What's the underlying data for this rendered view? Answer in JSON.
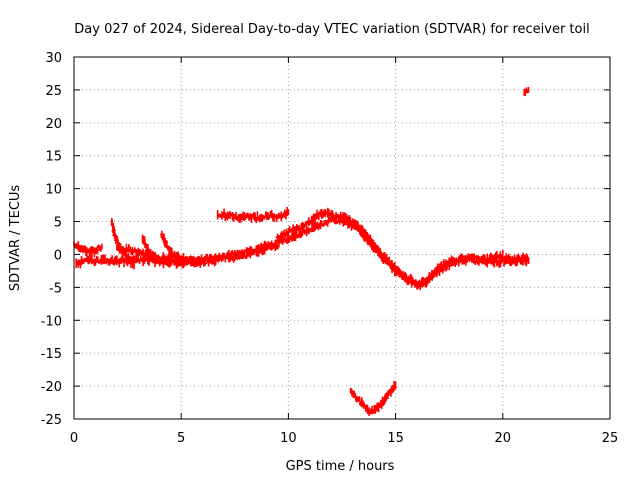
{
  "chart_data": {
    "type": "scatter",
    "title": "Day 027 of 2024, Sidereal Day-to-day VTEC variation (SDTVAR) for receiver toil",
    "xlabel": "GPS time / hours",
    "ylabel": "SDTVAR / TECUs",
    "xlim": [
      0,
      25
    ],
    "ylim": [
      -25,
      30
    ],
    "xticks": [
      0,
      5,
      10,
      15,
      20,
      25
    ],
    "yticks": [
      -25,
      -20,
      -15,
      -10,
      -5,
      0,
      5,
      10,
      15,
      20,
      25,
      30
    ],
    "grid": true,
    "series_color": "#ff0000",
    "tracks": [
      [
        [
          0.0,
          1.5
        ],
        [
          0.3,
          1.0
        ],
        [
          0.6,
          0.5
        ],
        [
          0.9,
          0.5
        ],
        [
          1.3,
          1.2
        ]
      ],
      [
        [
          0.1,
          -1.5
        ],
        [
          0.5,
          -0.9
        ],
        [
          1.0,
          -1.0
        ],
        [
          1.5,
          -1.0
        ],
        [
          2.0,
          -1.1
        ],
        [
          2.5,
          -0.9
        ],
        [
          3.0,
          -0.8
        ],
        [
          3.5,
          -0.9
        ],
        [
          4.0,
          -1.1
        ],
        [
          4.5,
          -1.2
        ],
        [
          5.0,
          -1.3
        ],
        [
          5.5,
          -1.2
        ],
        [
          6.0,
          -1.2
        ],
        [
          6.5,
          -0.9
        ],
        [
          7.0,
          -0.6
        ],
        [
          7.5,
          -0.4
        ],
        [
          8.0,
          -0.1
        ],
        [
          8.5,
          0.4
        ],
        [
          9.0,
          0.9
        ],
        [
          9.5,
          1.2
        ]
      ],
      [
        [
          1.75,
          5.0
        ],
        [
          1.9,
          3.0
        ],
        [
          2.1,
          1.0
        ],
        [
          2.4,
          0.0
        ],
        [
          2.6,
          -0.8
        ],
        [
          2.8,
          -1.8
        ]
      ],
      [
        [
          2.0,
          1.0
        ],
        [
          2.5,
          0.8
        ],
        [
          3.0,
          0.4
        ],
        [
          3.5,
          -0.2
        ],
        [
          4.0,
          -0.5
        ],
        [
          4.5,
          -0.6
        ],
        [
          5.0,
          -0.8
        ],
        [
          5.5,
          -0.9
        ],
        [
          6.0,
          -0.8
        ],
        [
          6.5,
          -0.6
        ],
        [
          7.0,
          -0.3
        ],
        [
          7.5,
          0.1
        ],
        [
          8.0,
          0.3
        ],
        [
          8.5,
          0.8
        ],
        [
          9.0,
          1.4
        ],
        [
          9.5,
          1.9
        ],
        [
          10.0,
          2.3
        ],
        [
          10.5,
          2.9
        ],
        [
          11.0,
          3.8
        ],
        [
          11.5,
          4.6
        ],
        [
          12.0,
          5.2
        ],
        [
          12.5,
          5.0
        ],
        [
          13.0,
          4.6
        ],
        [
          13.5,
          3.0
        ],
        [
          14.0,
          1.0
        ],
        [
          14.5,
          -1.0
        ],
        [
          15.0,
          -2.5
        ],
        [
          15.5,
          -3.5
        ],
        [
          16.0,
          -4.5
        ],
        [
          16.5,
          -4.0
        ],
        [
          17.0,
          -2.5
        ],
        [
          17.5,
          -1.5
        ],
        [
          18.0,
          -1.0
        ],
        [
          18.5,
          -0.8
        ],
        [
          19.0,
          -1.0
        ],
        [
          19.5,
          -1.2
        ],
        [
          20.0,
          -1.0
        ],
        [
          20.5,
          -1.1
        ],
        [
          21.0,
          -1.0
        ],
        [
          21.2,
          -1.0
        ]
      ],
      [
        [
          3.2,
          2.5
        ],
        [
          3.4,
          1.0
        ],
        [
          3.6,
          -0.3
        ],
        [
          3.8,
          -0.8
        ]
      ],
      [
        [
          4.1,
          2.8
        ],
        [
          4.3,
          1.5
        ],
        [
          4.6,
          0.2
        ],
        [
          4.9,
          -0.5
        ],
        [
          5.2,
          -0.9
        ]
      ],
      [
        [
          6.7,
          5.8
        ],
        [
          7.0,
          6.0
        ],
        [
          7.5,
          5.6
        ],
        [
          8.0,
          5.8
        ],
        [
          8.5,
          5.5
        ],
        [
          9.0,
          5.9
        ],
        [
          9.5,
          5.8
        ],
        [
          10.0,
          6.4
        ]
      ],
      [
        [
          9.5,
          2.5
        ],
        [
          10.0,
          3.5
        ],
        [
          10.5,
          4.0
        ],
        [
          11.0,
          4.8
        ],
        [
          11.5,
          6.3
        ],
        [
          12.0,
          6.0
        ],
        [
          12.5,
          5.6
        ],
        [
          13.0,
          5.0
        ],
        [
          13.5,
          3.5
        ],
        [
          14.0,
          1.5
        ],
        [
          14.5,
          -0.5
        ],
        [
          15.0,
          -2.2
        ],
        [
          15.5,
          -3.8
        ],
        [
          16.0,
          -4.8
        ],
        [
          16.5,
          -3.8
        ],
        [
          17.0,
          -2.0
        ],
        [
          17.5,
          -1.0
        ],
        [
          18.0,
          -0.8
        ],
        [
          18.5,
          -0.5
        ],
        [
          19.0,
          -0.9
        ],
        [
          19.5,
          -0.4
        ],
        [
          20.0,
          -0.3
        ],
        [
          20.5,
          -0.8
        ],
        [
          21.0,
          -0.5
        ],
        [
          21.2,
          -0.9
        ]
      ],
      [
        [
          12.9,
          -20.5
        ],
        [
          13.2,
          -21.8
        ],
        [
          13.5,
          -23.0
        ],
        [
          13.8,
          -24.0
        ],
        [
          14.1,
          -23.5
        ],
        [
          14.5,
          -22.0
        ],
        [
          15.0,
          -19.8
        ]
      ],
      [
        [
          21.0,
          24.8
        ],
        [
          21.2,
          25.0
        ]
      ]
    ]
  }
}
